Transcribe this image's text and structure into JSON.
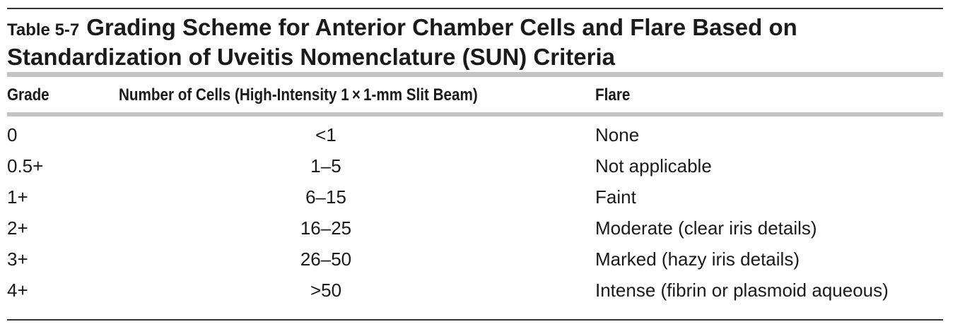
{
  "table": {
    "label": "Table 5-7",
    "title": "Grading Scheme for Anterior Chamber Cells and Flare Based on Standardization of Uveitis Nomenclature (SUN) Criteria",
    "headers": {
      "grade": "Grade",
      "cells": "Number of Cells (High-Intensity 1 × 1-mm Slit Beam)",
      "flare": "Flare"
    },
    "rows": [
      {
        "grade": "0",
        "cells": "<1",
        "flare": "None"
      },
      {
        "grade": "0.5+",
        "cells": "1–5",
        "flare": "Not applicable"
      },
      {
        "grade": "1+",
        "cells": "6–15",
        "flare": "Faint"
      },
      {
        "grade": "2+",
        "cells": "16–25",
        "flare": "Moderate (clear iris details)"
      },
      {
        "grade": "3+",
        "cells": "26–50",
        "flare": "Marked (hazy iris details)"
      },
      {
        "grade": "4+",
        "cells": ">50",
        "flare": "Intense (fibrin or plasmoid aqueous)"
      }
    ]
  }
}
